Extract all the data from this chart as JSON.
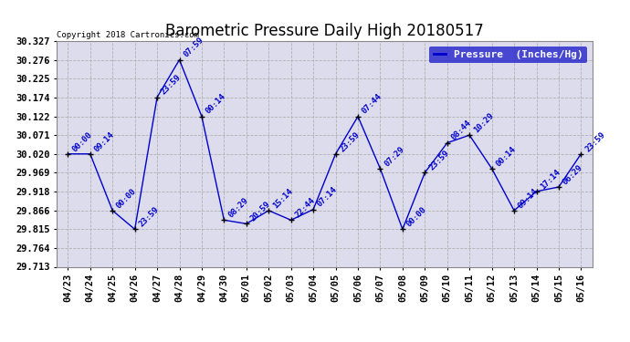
{
  "title": "Barometric Pressure Daily High 20180517",
  "copyright": "Copyright 2018 Cartronics.com",
  "legend_label": "Pressure  (Inches/Hg)",
  "x_labels": [
    "04/23",
    "04/24",
    "04/25",
    "04/26",
    "04/27",
    "04/28",
    "04/29",
    "04/30",
    "05/01",
    "05/02",
    "05/03",
    "05/04",
    "05/05",
    "05/06",
    "05/07",
    "05/08",
    "05/09",
    "05/10",
    "05/11",
    "05/12",
    "05/13",
    "05/14",
    "05/15",
    "05/16"
  ],
  "y_values": [
    30.02,
    30.02,
    29.866,
    29.815,
    30.174,
    30.276,
    30.122,
    29.84,
    29.83,
    29.866,
    29.84,
    29.869,
    30.02,
    30.122,
    29.98,
    29.815,
    29.969,
    30.05,
    30.071,
    29.98,
    29.866,
    29.918,
    29.93,
    30.02
  ],
  "annotations": [
    "00:00",
    "09:14",
    "00:00",
    "23:59",
    "23:59",
    "07:59",
    "00:14",
    "08:29",
    "20:59",
    "15:14",
    "22:44",
    "07:14",
    "23:59",
    "07:44",
    "07:29",
    "00:00",
    "23:59",
    "08:44",
    "10:29",
    "00:14",
    "09:14",
    "17:14",
    "06:29",
    "23:59"
  ],
  "line_color": "#0000cc",
  "marker_color": "#000000",
  "annotation_color": "#0000cc",
  "bg_color": "#ffffff",
  "plot_bg_color": "#dcdcec",
  "grid_color": "#b0b0b0",
  "y_min": 29.713,
  "y_max": 30.327,
  "y_ticks": [
    29.713,
    29.764,
    29.815,
    29.866,
    29.918,
    29.969,
    30.02,
    30.071,
    30.122,
    30.174,
    30.225,
    30.276,
    30.327
  ],
  "title_fontsize": 12,
  "annotation_fontsize": 6.5,
  "tick_fontsize": 7.5,
  "legend_fontsize": 8
}
